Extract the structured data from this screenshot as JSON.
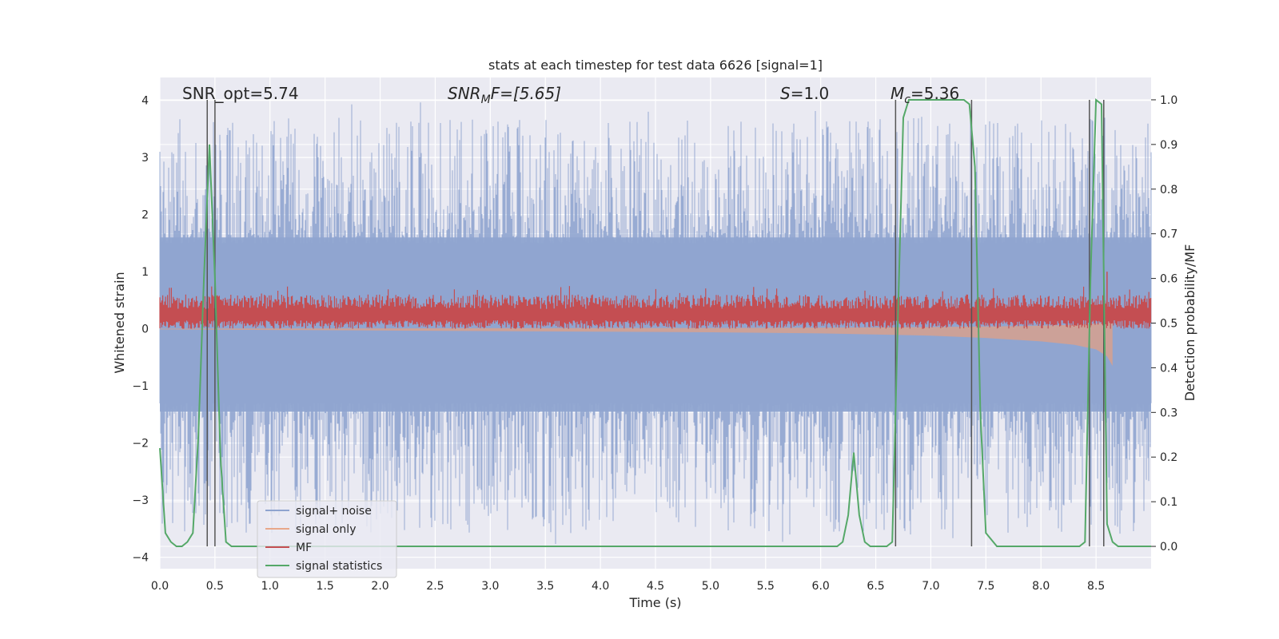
{
  "chart_data": {
    "type": "line",
    "title": "stats at each timestep for test data 6626 [signal=1]",
    "xlabel": "Time (s)",
    "ylabel": "Whitened strain",
    "y2label": "Detection probability/MF",
    "xlim": [
      0.0,
      9.0
    ],
    "ylim": [
      -4.2,
      4.4
    ],
    "y2lim": [
      -0.05,
      1.05
    ],
    "xticks": [
      "0.0",
      "0.5",
      "1.0",
      "1.5",
      "2.0",
      "2.5",
      "3.0",
      "3.5",
      "4.0",
      "4.5",
      "5.0",
      "5.5",
      "6.0",
      "6.5",
      "7.0",
      "7.5",
      "8.0",
      "8.5"
    ],
    "yticks": [
      "4",
      "3",
      "2",
      "1",
      "0",
      "−1",
      "−2",
      "−3",
      "−4"
    ],
    "y2ticks": [
      "1.0",
      "0.9",
      "0.8",
      "0.7",
      "0.6",
      "0.5",
      "0.4",
      "0.3",
      "0.2",
      "0.1",
      "0.0"
    ],
    "grid": true,
    "legend_position": "lower-left",
    "annotations": {
      "snr_opt": "SNR_opt=5.74",
      "snr_mf_main": "SNR",
      "snr_mf_sub": "M",
      "snr_mf_rest": "F=[5.65]",
      "s_main": "S",
      "s_rest": "=1.0",
      "mc_main": "M",
      "mc_sub": "c",
      "mc_rest": "=5.36"
    },
    "series": [
      {
        "name": "signal+ noise",
        "color": "#8fa4cf",
        "axis": "left",
        "description_range": [
          -4.0,
          4.0
        ]
      },
      {
        "name": "signal only",
        "color": "#e8a78a",
        "axis": "left",
        "envelope_x": [
          0.0,
          1.0,
          2.0,
          3.0,
          4.0,
          5.0,
          6.0,
          7.0,
          7.5,
          8.0,
          8.3,
          8.5,
          8.6,
          8.65
        ],
        "envelope_y": [
          0.01,
          0.02,
          0.03,
          0.04,
          0.05,
          0.06,
          0.08,
          0.12,
          0.16,
          0.22,
          0.28,
          0.36,
          0.48,
          0.65
        ]
      },
      {
        "name": "MF",
        "color": "#c44e52",
        "axis": "left"
      },
      {
        "name": "signal statistics",
        "color": "#55a868",
        "axis": "right",
        "x": [
          0.0,
          0.05,
          0.1,
          0.15,
          0.2,
          0.25,
          0.3,
          0.35,
          0.4,
          0.45,
          0.5,
          0.55,
          0.6,
          0.65,
          0.7,
          0.8,
          1.0,
          2.0,
          3.0,
          4.0,
          5.0,
          6.0,
          6.15,
          6.2,
          6.25,
          6.3,
          6.35,
          6.4,
          6.45,
          6.55,
          6.6,
          6.65,
          6.7,
          6.75,
          6.8,
          6.9,
          7.0,
          7.2,
          7.3,
          7.35,
          7.4,
          7.45,
          7.5,
          7.6,
          8.0,
          8.35,
          8.4,
          8.45,
          8.5,
          8.55,
          8.6,
          8.65,
          8.7,
          8.8,
          9.0
        ],
        "y": [
          0.22,
          0.03,
          0.01,
          0.0,
          0.0,
          0.01,
          0.03,
          0.25,
          0.6,
          0.9,
          0.6,
          0.2,
          0.01,
          0.0,
          0.0,
          0.0,
          0.0,
          0.0,
          0.0,
          0.0,
          0.0,
          0.0,
          0.0,
          0.01,
          0.07,
          0.21,
          0.07,
          0.01,
          0.0,
          0.0,
          0.0,
          0.01,
          0.5,
          0.96,
          1.0,
          1.0,
          1.0,
          1.0,
          1.0,
          0.99,
          0.85,
          0.3,
          0.03,
          0.0,
          0.0,
          0.0,
          0.01,
          0.6,
          1.0,
          0.99,
          0.05,
          0.01,
          0.0,
          0.0,
          0.0
        ]
      }
    ],
    "vertical_markers_x": [
      0.43,
      0.5,
      6.68,
      7.37,
      8.44,
      8.57
    ]
  }
}
